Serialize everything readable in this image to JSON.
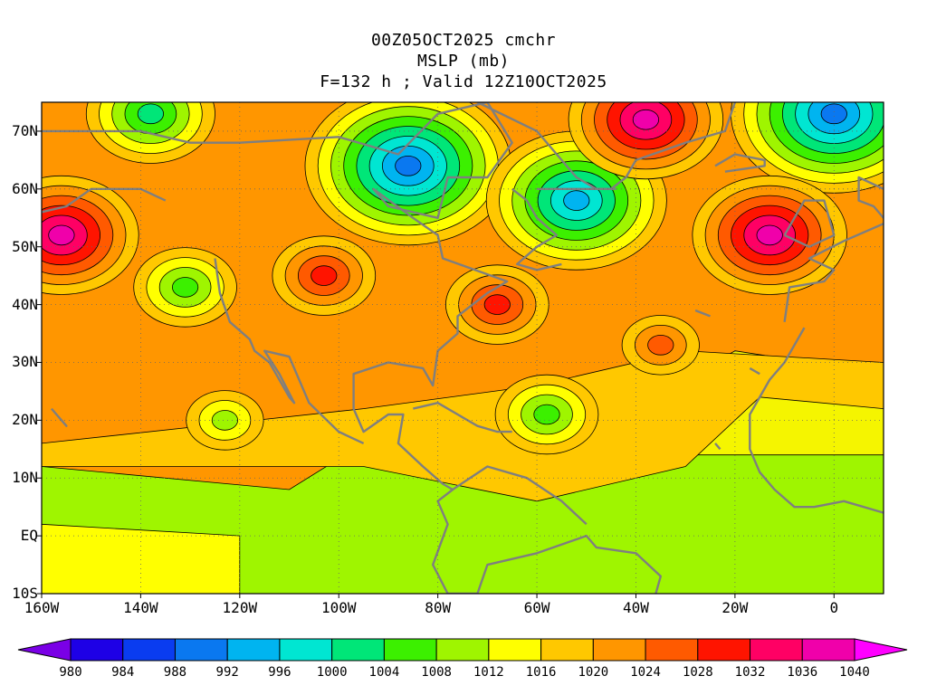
{
  "header": {
    "line1": "00Z05OCT2025 cmchr",
    "line2": "MSLP (mb)",
    "line3": "F=132 h ; Valid 12Z10OCT2025"
  },
  "axes": {
    "lat_labels": [
      "70N",
      "60N",
      "50N",
      "40N",
      "30N",
      "20N",
      "10N",
      "EQ",
      "10S"
    ],
    "lat_values": [
      70,
      60,
      50,
      40,
      30,
      20,
      10,
      0,
      -10
    ],
    "lon_labels": [
      "160W",
      "140W",
      "120W",
      "100W",
      "80W",
      "60W",
      "40W",
      "20W",
      "0"
    ],
    "lon_values": [
      -160,
      -140,
      -120,
      -100,
      -80,
      -60,
      -40,
      -20,
      0
    ],
    "lon_range": [
      -160,
      10
    ],
    "lat_range": [
      -10,
      75
    ],
    "grid": "dotted"
  },
  "colorbar": {
    "levels": [
      980,
      984,
      988,
      992,
      996,
      1000,
      1004,
      1008,
      1012,
      1016,
      1020,
      1024,
      1028,
      1032,
      1036,
      1040
    ],
    "level_labels": [
      "980",
      "984",
      "988",
      "992",
      "996",
      "1000",
      "1004",
      "1008",
      "1012",
      "1016",
      "1020",
      "1024",
      "1028",
      "1032",
      "1036",
      "1040"
    ],
    "colors": [
      "#7a00e6",
      "#1e00e6",
      "#0a3cf0",
      "#0a78f0",
      "#00b4f0",
      "#00e6d2",
      "#00e678",
      "#3cf000",
      "#9ff500",
      "#ffff00",
      "#ffc800",
      "#ff9600",
      "#ff5a00",
      "#ff1400",
      "#ff0064",
      "#f000aa",
      "#ff00ff"
    ]
  },
  "systems": [
    {
      "type": "low",
      "lon": -86,
      "lat": 64,
      "center": 988
    },
    {
      "type": "low",
      "lon": -52,
      "lat": 58,
      "center": 992
    },
    {
      "type": "low",
      "lon": 0,
      "lat": 73,
      "center": 988
    },
    {
      "type": "low",
      "lon": -138,
      "lat": 73,
      "center": 1000
    },
    {
      "type": "low",
      "lon": -131,
      "lat": 43,
      "center": 1004
    },
    {
      "type": "low",
      "lon": -123,
      "lat": 20,
      "center": 1008
    },
    {
      "type": "low",
      "lon": -58,
      "lat": 21,
      "center": 1004
    },
    {
      "type": "high",
      "lon": -156,
      "lat": 52,
      "center": 1036
    },
    {
      "type": "high",
      "lon": -13,
      "lat": 52,
      "center": 1036
    },
    {
      "type": "high",
      "lon": -38,
      "lat": 72,
      "center": 1036
    },
    {
      "type": "high",
      "lon": -68,
      "lat": 40,
      "center": 1028
    },
    {
      "type": "high",
      "lon": -103,
      "lat": 45,
      "center": 1028
    },
    {
      "type": "high",
      "lon": -35,
      "lat": 33,
      "center": 1024
    }
  ]
}
